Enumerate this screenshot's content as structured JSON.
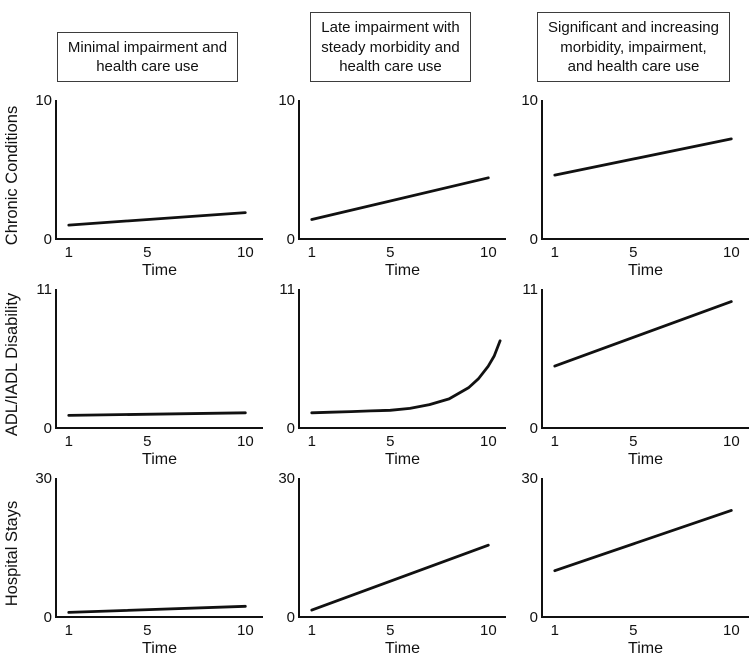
{
  "figure": {
    "column_headers": [
      "Minimal impairment and\nhealth care use",
      "Late impairment with\nsteady morbidity and\nhealth care use",
      "Significant and increasing\nmorbidity, impairment,\nand health care use"
    ],
    "row_labels": [
      "Chronic Conditions",
      "ADL/IADL Disability",
      "Hospital Stays"
    ]
  },
  "colors": {
    "line": "#111111",
    "axis": "#111111"
  },
  "chart_data": [
    {
      "type": "line",
      "row": "Chronic Conditions",
      "column": "Minimal impairment and health care use",
      "xlabel": "Time",
      "xticks": [
        1,
        5,
        10
      ],
      "yticks": [
        0,
        10
      ],
      "xlim": [
        1,
        10
      ],
      "ylim": [
        0,
        10
      ],
      "points": [
        [
          1,
          1.0
        ],
        [
          10,
          1.9
        ]
      ]
    },
    {
      "type": "line",
      "row": "Chronic Conditions",
      "column": "Late impairment with steady morbidity and health care use",
      "xlabel": "Time",
      "xticks": [
        1,
        5,
        10
      ],
      "yticks": [
        0,
        10
      ],
      "xlim": [
        1,
        10
      ],
      "ylim": [
        0,
        10
      ],
      "points": [
        [
          1,
          1.4
        ],
        [
          10,
          4.4
        ]
      ]
    },
    {
      "type": "line",
      "row": "Chronic Conditions",
      "column": "Significant and increasing morbidity, impairment, and health care use",
      "xlabel": "Time",
      "xticks": [
        1,
        5,
        10
      ],
      "yticks": [
        0,
        10
      ],
      "xlim": [
        1,
        10
      ],
      "ylim": [
        0,
        10
      ],
      "points": [
        [
          1,
          4.6
        ],
        [
          10,
          7.2
        ]
      ]
    },
    {
      "type": "line",
      "row": "ADL/IADL Disability",
      "column": "Minimal impairment and health care use",
      "xlabel": "Time",
      "xticks": [
        1,
        5,
        10
      ],
      "yticks": [
        0,
        11
      ],
      "xlim": [
        1,
        10
      ],
      "ylim": [
        0,
        11
      ],
      "points": [
        [
          1,
          1.0
        ],
        [
          10,
          1.2
        ]
      ]
    },
    {
      "type": "line",
      "row": "ADL/IADL Disability",
      "column": "Late impairment with steady morbidity and health care use",
      "xlabel": "Time",
      "xticks": [
        1,
        5,
        10
      ],
      "yticks": [
        0,
        11
      ],
      "xlim": [
        1,
        10
      ],
      "ylim": [
        0,
        11
      ],
      "points": [
        [
          1,
          1.2
        ],
        [
          2,
          1.25
        ],
        [
          3,
          1.3
        ],
        [
          4,
          1.35
        ],
        [
          5,
          1.4
        ],
        [
          6,
          1.55
        ],
        [
          7,
          1.85
        ],
        [
          8,
          2.3
        ],
        [
          9,
          3.2
        ],
        [
          9.5,
          3.9
        ],
        [
          10,
          4.9
        ],
        [
          10.3,
          5.7
        ],
        [
          10.6,
          6.9
        ]
      ]
    },
    {
      "type": "line",
      "row": "ADL/IADL Disability",
      "column": "Significant and increasing morbidity, impairment, and health care use",
      "xlabel": "Time",
      "xticks": [
        1,
        5,
        10
      ],
      "yticks": [
        0,
        11
      ],
      "xlim": [
        1,
        10
      ],
      "ylim": [
        0,
        11
      ],
      "points": [
        [
          1,
          4.9
        ],
        [
          10,
          10.0
        ]
      ]
    },
    {
      "type": "line",
      "row": "Hospital Stays",
      "column": "Minimal impairment and health care use",
      "xlabel": "Time",
      "xticks": [
        1,
        5,
        10
      ],
      "yticks": [
        0,
        30
      ],
      "xlim": [
        1,
        10
      ],
      "ylim": [
        0,
        30
      ],
      "points": [
        [
          1,
          1.0
        ],
        [
          10,
          2.3
        ]
      ]
    },
    {
      "type": "line",
      "row": "Hospital Stays",
      "column": "Late impairment with steady morbidity and health care use",
      "xlabel": "Time",
      "xticks": [
        1,
        5,
        10
      ],
      "yticks": [
        0,
        30
      ],
      "xlim": [
        1,
        10
      ],
      "ylim": [
        0,
        30
      ],
      "points": [
        [
          1,
          1.5
        ],
        [
          10,
          15.5
        ]
      ]
    },
    {
      "type": "line",
      "row": "Hospital Stays",
      "column": "Significant and increasing morbidity, impairment, and health care use",
      "xlabel": "Time",
      "xticks": [
        1,
        5,
        10
      ],
      "yticks": [
        0,
        30
      ],
      "xlim": [
        1,
        10
      ],
      "ylim": [
        0,
        30
      ],
      "points": [
        [
          1,
          10.0
        ],
        [
          10,
          23.0
        ]
      ]
    }
  ]
}
